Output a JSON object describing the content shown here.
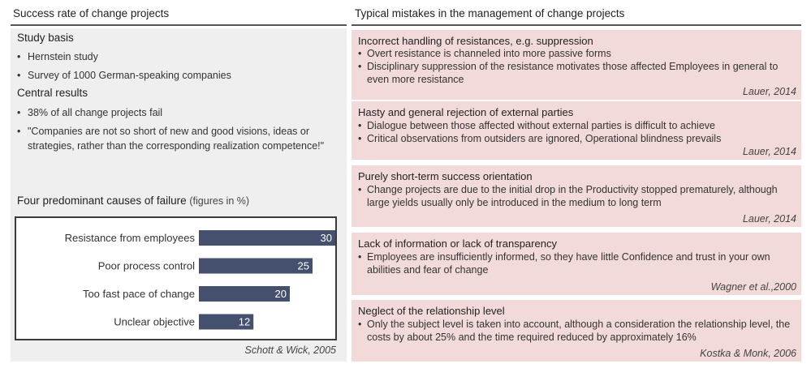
{
  "left": {
    "title": "Success rate of change projects",
    "study_basis": {
      "heading": "Study basis",
      "items": [
        "Hernstein study",
        "Survey of 1000 German-speaking companies"
      ]
    },
    "central_results": {
      "heading": "Central results",
      "items": [
        "38% of all change projects fail",
        "\"Companies are not so short of new and good visions, ideas or strategies, rather than the corresponding realization competence!\""
      ]
    },
    "causes": {
      "title": "Four predominant causes of failure",
      "subtitle": "(figures in %)",
      "source": "Schott & Wick, 2005"
    }
  },
  "right": {
    "title": "Typical mistakes in the management of change projects",
    "boxes": [
      {
        "title": "Incorrect handling of resistances, e.g. suppression",
        "items": [
          "Overt resistance is channeled into more passive forms",
          "Disciplinary suppression of the resistance motivates those affected Employees in general to even more resistance"
        ],
        "source": "Lauer, 2014"
      },
      {
        "title": "Hasty and general rejection of external parties",
        "items": [
          "Dialogue between those affected without external parties is difficult to achieve",
          "Critical observations from outsiders are ignored, Operational blindness prevails"
        ],
        "source": "Lauer, 2014"
      },
      {
        "title": "Purely short-term success orientation",
        "items": [
          "Change projects are due to the initial drop in the Productivity stopped prematurely, although large yields usually only be introduced in the medium to long term"
        ],
        "source": "Lauer, 2014"
      },
      {
        "title": "Lack of information or lack of transparency",
        "items": [
          "Employees are insufficiently informed, so they have little Confidence and trust in your own abilities and fear of change"
        ],
        "source": "Wagner et al.,2000"
      },
      {
        "title": "Neglect of the relationship level",
        "items": [
          "Only the subject level is taken into account, although a consideration the relationship level, the costs by about 25% and the time required reduced by approximately 16%"
        ],
        "source": "Kostka & Monk, 2006"
      }
    ]
  },
  "chart_data": {
    "type": "bar",
    "orientation": "horizontal",
    "title": "Four predominant causes of failure",
    "categories": [
      "Resistance from employees",
      "Poor process control",
      "Too fast pace of change",
      "Unclear objective"
    ],
    "values": [
      30,
      25,
      20,
      12
    ],
    "xlim": [
      0,
      30
    ],
    "bar_color": "#44506e",
    "grid": false
  }
}
